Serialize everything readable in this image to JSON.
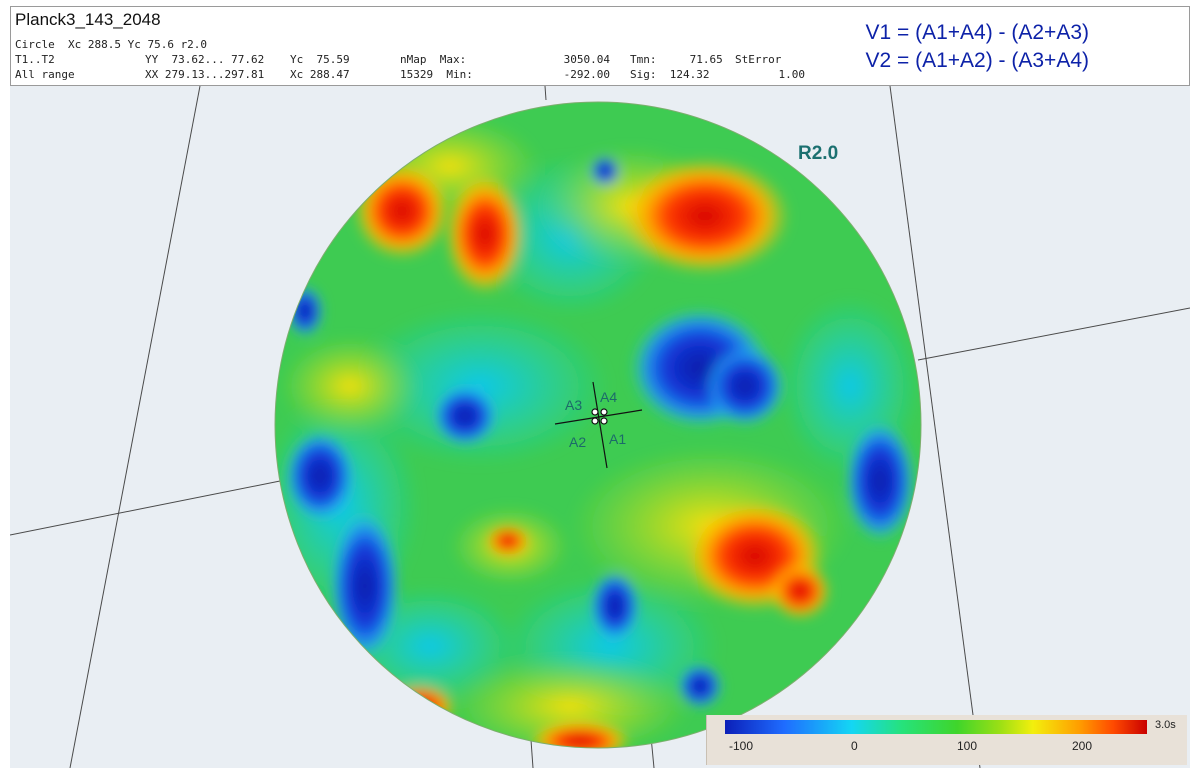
{
  "header": {
    "title": "Planck3_143_2048",
    "rows": [
      [
        "Circle  Xc 288.5 Yc 75.6 r2.0",
        "",
        "",
        "",
        "",
        "",
        ""
      ],
      [
        "T1..T2",
        "YY  73.62... 77.62",
        "Yc  75.59",
        "nMap  Max:",
        "3050.04",
        "Tmn:     71.65",
        "StError"
      ],
      [
        "All range",
        "XX 279.13...297.81",
        "Xc 288.47",
        "15329  Min:",
        "-292.00",
        "Sig:  124.32",
        "1.00"
      ]
    ]
  },
  "formulas": {
    "v1": "V1 = (A1+A4) - (A2+A3)",
    "v2": "V2 = (A1+A2) - (A3+A4)"
  },
  "map": {
    "radius_label": "R2.0",
    "points": [
      "A1",
      "A2",
      "A3",
      "A4"
    ]
  },
  "colorbar": {
    "unit": "3.0s",
    "ticks": [
      "-100",
      "0",
      "100",
      "200"
    ]
  }
}
